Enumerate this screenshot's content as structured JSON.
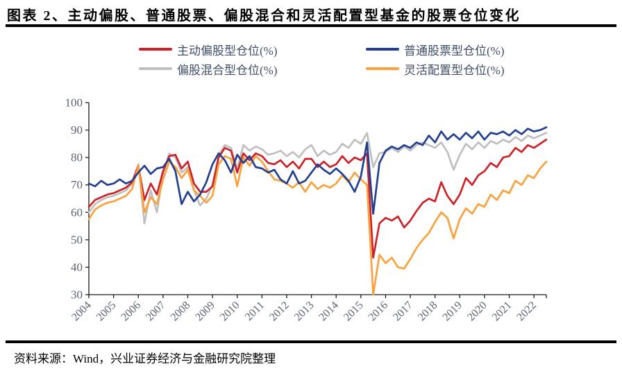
{
  "figure": {
    "title": "图表 2、主动偏股、普通股票、偏股混合和灵活配置型基金的股票仓位变化",
    "source": "资料来源：Wind，兴业证券经济与金融研究院整理"
  },
  "colors": {
    "axis_line": "#1a1a1a",
    "axis_text": "#5A6474",
    "legend_text": "#3F4E66",
    "rule": "#000000"
  },
  "chart_data": {
    "type": "line",
    "title": "",
    "xlabel": "",
    "ylabel": "",
    "x_mode": "quarterly",
    "x_start": "2004Q1",
    "x_end": "2022Q3",
    "xtick_labels": [
      "2004",
      "2005",
      "2006",
      "2007",
      "2008",
      "2009",
      "2010",
      "2011",
      "2012",
      "2013",
      "2014",
      "2015",
      "2016",
      "2017",
      "2018",
      "2019",
      "2020",
      "2021",
      "2022"
    ],
    "yticks": [
      30,
      40,
      50,
      60,
      70,
      80,
      90,
      100
    ],
    "ylim": [
      30,
      100
    ],
    "grid": false,
    "legend_position": "top",
    "series": [
      {
        "name": "主动偏股型仓位(%)",
        "color": "#CD2128",
        "values": [
          62,
          64.5,
          65.5,
          66.5,
          67,
          68,
          69,
          71,
          77,
          64.5,
          70.5,
          66.5,
          75,
          80.5,
          81,
          76,
          78.5,
          70.5,
          67.5,
          67.5,
          69.5,
          80,
          83.5,
          82.5,
          74.5,
          81.5,
          79,
          81.5,
          80.5,
          78,
          77.5,
          79,
          76.5,
          78.5,
          76,
          79.5,
          79.5,
          76.5,
          78.5,
          76.5,
          77.5,
          80.5,
          78,
          80,
          79,
          81.5,
          43.5,
          56,
          58,
          57,
          58.5,
          54.5,
          57,
          60.5,
          63.5,
          65,
          64,
          71,
          66,
          63,
          66.5,
          72.5,
          70,
          73.5,
          75,
          78,
          76.5,
          80,
          80.5,
          83.5,
          82,
          84.5,
          83.5,
          85,
          86.5
        ]
      },
      {
        "name": "普通股票型仓位(%)",
        "color": "#213E91",
        "values": [
          70.5,
          69.5,
          71.5,
          70,
          70.5,
          72,
          70.5,
          71.5,
          74.5,
          77,
          74,
          76,
          76.5,
          79.5,
          75,
          63,
          67.5,
          64,
          66.5,
          71,
          77.5,
          81.5,
          79,
          74.5,
          81,
          78,
          80.5,
          76.5,
          76,
          74.5,
          75.5,
          72,
          70.5,
          75,
          70.5,
          71.5,
          74.5,
          77.5,
          75.5,
          74,
          76,
          74,
          71.5,
          67.5,
          73,
          85.5,
          59.5,
          78,
          82.5,
          84,
          83,
          84.5,
          83.5,
          85.5,
          84.5,
          88,
          85.5,
          89.5,
          86.5,
          88.5,
          86.5,
          89,
          87,
          89.5,
          86.5,
          89,
          88.5,
          89.5,
          88,
          90,
          88.5,
          90.5,
          89.5,
          90,
          91
        ]
      },
      {
        "name": "偏股混合型仓位(%)",
        "color": "#BFBFBF",
        "values": [
          60,
          63,
          64.5,
          65.5,
          66,
          67,
          68,
          70.5,
          77.5,
          56,
          68,
          60,
          74,
          81.5,
          80,
          74.5,
          76.5,
          68,
          62.5,
          65,
          70,
          81,
          84.5,
          83.5,
          76,
          84.5,
          82.5,
          84,
          83,
          81,
          81.5,
          82.5,
          80.5,
          82,
          80,
          83,
          84.5,
          80.5,
          82.5,
          81,
          82,
          85,
          83.5,
          86.5,
          85,
          88.9,
          76.5,
          81.5,
          82,
          83.5,
          82,
          84,
          82.5,
          84.5,
          85.5,
          84.5,
          83.5,
          85.5,
          82,
          75.5,
          81,
          85,
          83,
          85.5,
          83.5,
          86,
          85,
          86.5,
          85.5,
          87.5,
          86,
          88,
          87,
          88,
          89
        ]
      },
      {
        "name": "灵活配置型仓位(%)",
        "color": "#F9A13C",
        "values": [
          57.5,
          61,
          62.5,
          63.5,
          64,
          65,
          66,
          68.5,
          77,
          60,
          65.5,
          63,
          72,
          78.5,
          76.5,
          72.5,
          75.5,
          68,
          66,
          63.5,
          66,
          77.5,
          80.5,
          79.5,
          69.5,
          80,
          77,
          80.5,
          78.5,
          75,
          72,
          71.5,
          70.5,
          69,
          71,
          67.5,
          71,
          68.5,
          70,
          69,
          70.5,
          73.5,
          71,
          74.5,
          72,
          70,
          30,
          44.5,
          41.5,
          43.5,
          40,
          39.5,
          43,
          47,
          50,
          52.5,
          56.5,
          60,
          58,
          50.5,
          57.5,
          61.5,
          59.5,
          63,
          62,
          66.5,
          64.5,
          68,
          67,
          71.5,
          70,
          73.5,
          72.5,
          76,
          78.5
        ]
      }
    ]
  }
}
